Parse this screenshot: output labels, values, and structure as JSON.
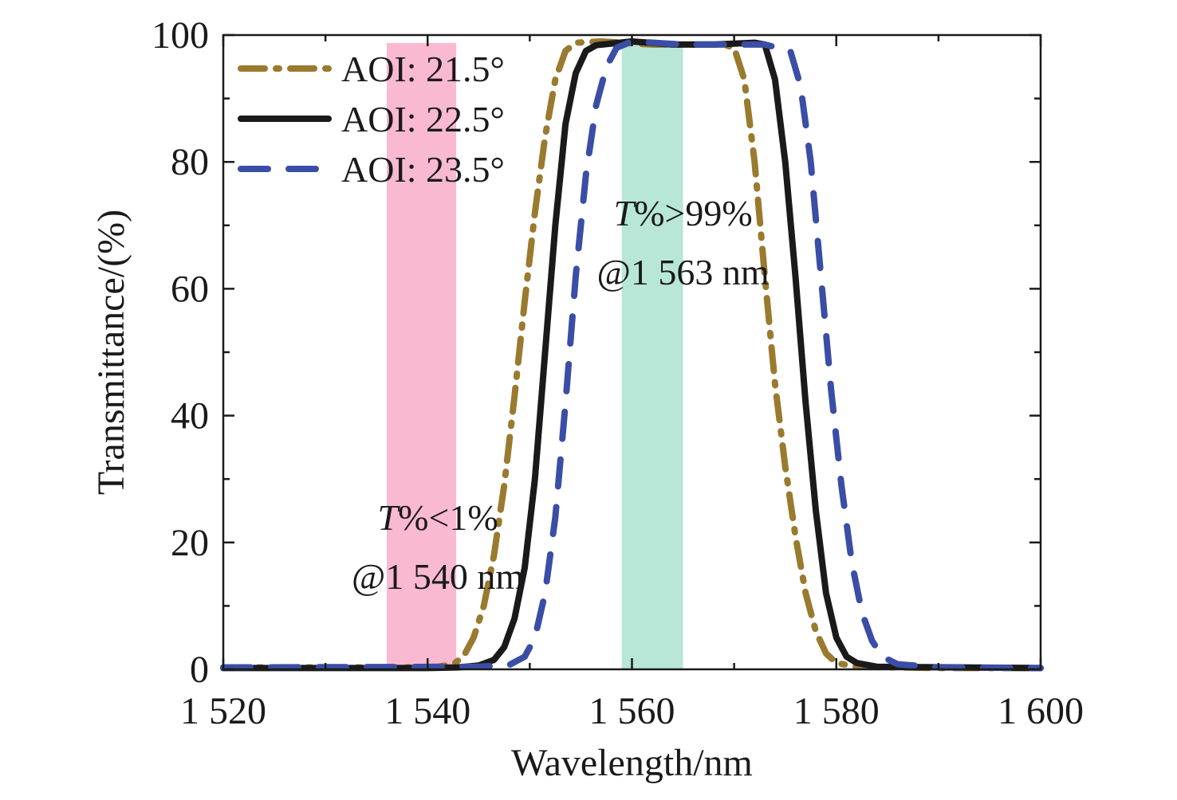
{
  "chart_data": {
    "type": "line",
    "title": "",
    "xlabel": "Wavelength/nm",
    "ylabel": "Transmittance/(%)",
    "xlim": [
      1520,
      1600
    ],
    "ylim": [
      0,
      100
    ],
    "x_ticks": [
      1520,
      1540,
      1560,
      1580,
      1600
    ],
    "x_tick_labels": [
      "1 520",
      "1 540",
      "1 560",
      "1 580",
      "1 600"
    ],
    "y_ticks": [
      0,
      20,
      40,
      60,
      80,
      100
    ],
    "y_tick_labels": [
      "0",
      "20",
      "40",
      "60",
      "80",
      "100"
    ],
    "grid": false,
    "legend_position": "top-left",
    "bands": [
      {
        "name": "rejection band",
        "x": [
          1536,
          1542.8
        ],
        "color": "#f7a8c6"
      },
      {
        "name": "pass band",
        "x": [
          1559,
          1565
        ],
        "color": "#a6e0cd"
      }
    ],
    "annotations": [
      {
        "lines": [
          "T%<1%",
          "@1 540 nm"
        ],
        "at": [
          1541,
          22
        ]
      },
      {
        "lines": [
          "T%>99%",
          "@1 563 nm"
        ],
        "at": [
          1565,
          70
        ]
      }
    ],
    "series": [
      {
        "name": "AOI: 21.5°",
        "style": "dashdot",
        "color": "#9a7a2e",
        "points": [
          [
            1520,
            0.3
          ],
          [
            1538,
            0.3
          ],
          [
            1541,
            0.4
          ],
          [
            1542.5,
            0.8
          ],
          [
            1543.5,
            2
          ],
          [
            1544.5,
            5
          ],
          [
            1545.5,
            10
          ],
          [
            1546.5,
            18
          ],
          [
            1547.5,
            29
          ],
          [
            1548.5,
            43
          ],
          [
            1549.5,
            58
          ],
          [
            1550.5,
            72
          ],
          [
            1551.5,
            84
          ],
          [
            1552.5,
            93
          ],
          [
            1553.5,
            97.5
          ],
          [
            1554.5,
            98.8
          ],
          [
            1557,
            99
          ],
          [
            1562,
            98.5
          ],
          [
            1566,
            98.5
          ],
          [
            1569,
            98.5
          ],
          [
            1570,
            98
          ],
          [
            1571,
            93
          ],
          [
            1572,
            80
          ],
          [
            1573,
            62
          ],
          [
            1574,
            45
          ],
          [
            1575,
            32
          ],
          [
            1576,
            21
          ],
          [
            1577,
            12
          ],
          [
            1578,
            6
          ],
          [
            1579,
            2.5
          ],
          [
            1580,
            1
          ],
          [
            1582,
            0.4
          ],
          [
            1590,
            0.2
          ],
          [
            1600,
            0.2
          ]
        ]
      },
      {
        "name": "AOI: 22.5°",
        "style": "solid",
        "color": "#1a1a1a",
        "points": [
          [
            1520,
            0.2
          ],
          [
            1540,
            0.2
          ],
          [
            1543,
            0.3
          ],
          [
            1545,
            0.6
          ],
          [
            1546.5,
            1.5
          ],
          [
            1547.5,
            3.5
          ],
          [
            1548.5,
            8
          ],
          [
            1549.5,
            16
          ],
          [
            1550.5,
            30
          ],
          [
            1551.5,
            50
          ],
          [
            1552.5,
            70
          ],
          [
            1553.5,
            86
          ],
          [
            1554.5,
            94
          ],
          [
            1555.5,
            97.5
          ],
          [
            1556.5,
            98.4
          ],
          [
            1560,
            99
          ],
          [
            1564,
            98.5
          ],
          [
            1568,
            98.5
          ],
          [
            1572,
            98.8
          ],
          [
            1573,
            98.5
          ],
          [
            1574,
            93
          ],
          [
            1575,
            80
          ],
          [
            1576,
            62
          ],
          [
            1577,
            42
          ],
          [
            1578,
            25
          ],
          [
            1579,
            12
          ],
          [
            1580,
            5
          ],
          [
            1581,
            2
          ],
          [
            1582,
            1
          ],
          [
            1584,
            0.4
          ],
          [
            1600,
            0.2
          ]
        ]
      },
      {
        "name": "AOI: 23.5°",
        "style": "dashed",
        "color": "#3a4ea6",
        "points": [
          [
            1520,
            0.3
          ],
          [
            1545,
            0.4
          ],
          [
            1548,
            0.7
          ],
          [
            1549.5,
            2
          ],
          [
            1550.5,
            5
          ],
          [
            1551.5,
            12
          ],
          [
            1552.5,
            24
          ],
          [
            1553.5,
            42
          ],
          [
            1554.5,
            62
          ],
          [
            1555.5,
            78
          ],
          [
            1556.5,
            89
          ],
          [
            1557.5,
            95
          ],
          [
            1558.5,
            98
          ],
          [
            1560,
            99
          ],
          [
            1565,
            98.5
          ],
          [
            1570,
            98.5
          ],
          [
            1573,
            98.5
          ],
          [
            1575.5,
            97.5
          ],
          [
            1576.5,
            92
          ],
          [
            1577.5,
            80
          ],
          [
            1578.5,
            62
          ],
          [
            1579.5,
            44
          ],
          [
            1580.5,
            29
          ],
          [
            1581.5,
            17
          ],
          [
            1582.5,
            9
          ],
          [
            1583.5,
            4.5
          ],
          [
            1584.5,
            2
          ],
          [
            1586,
            0.8
          ],
          [
            1590,
            0.3
          ],
          [
            1600,
            0.2
          ]
        ]
      }
    ]
  }
}
